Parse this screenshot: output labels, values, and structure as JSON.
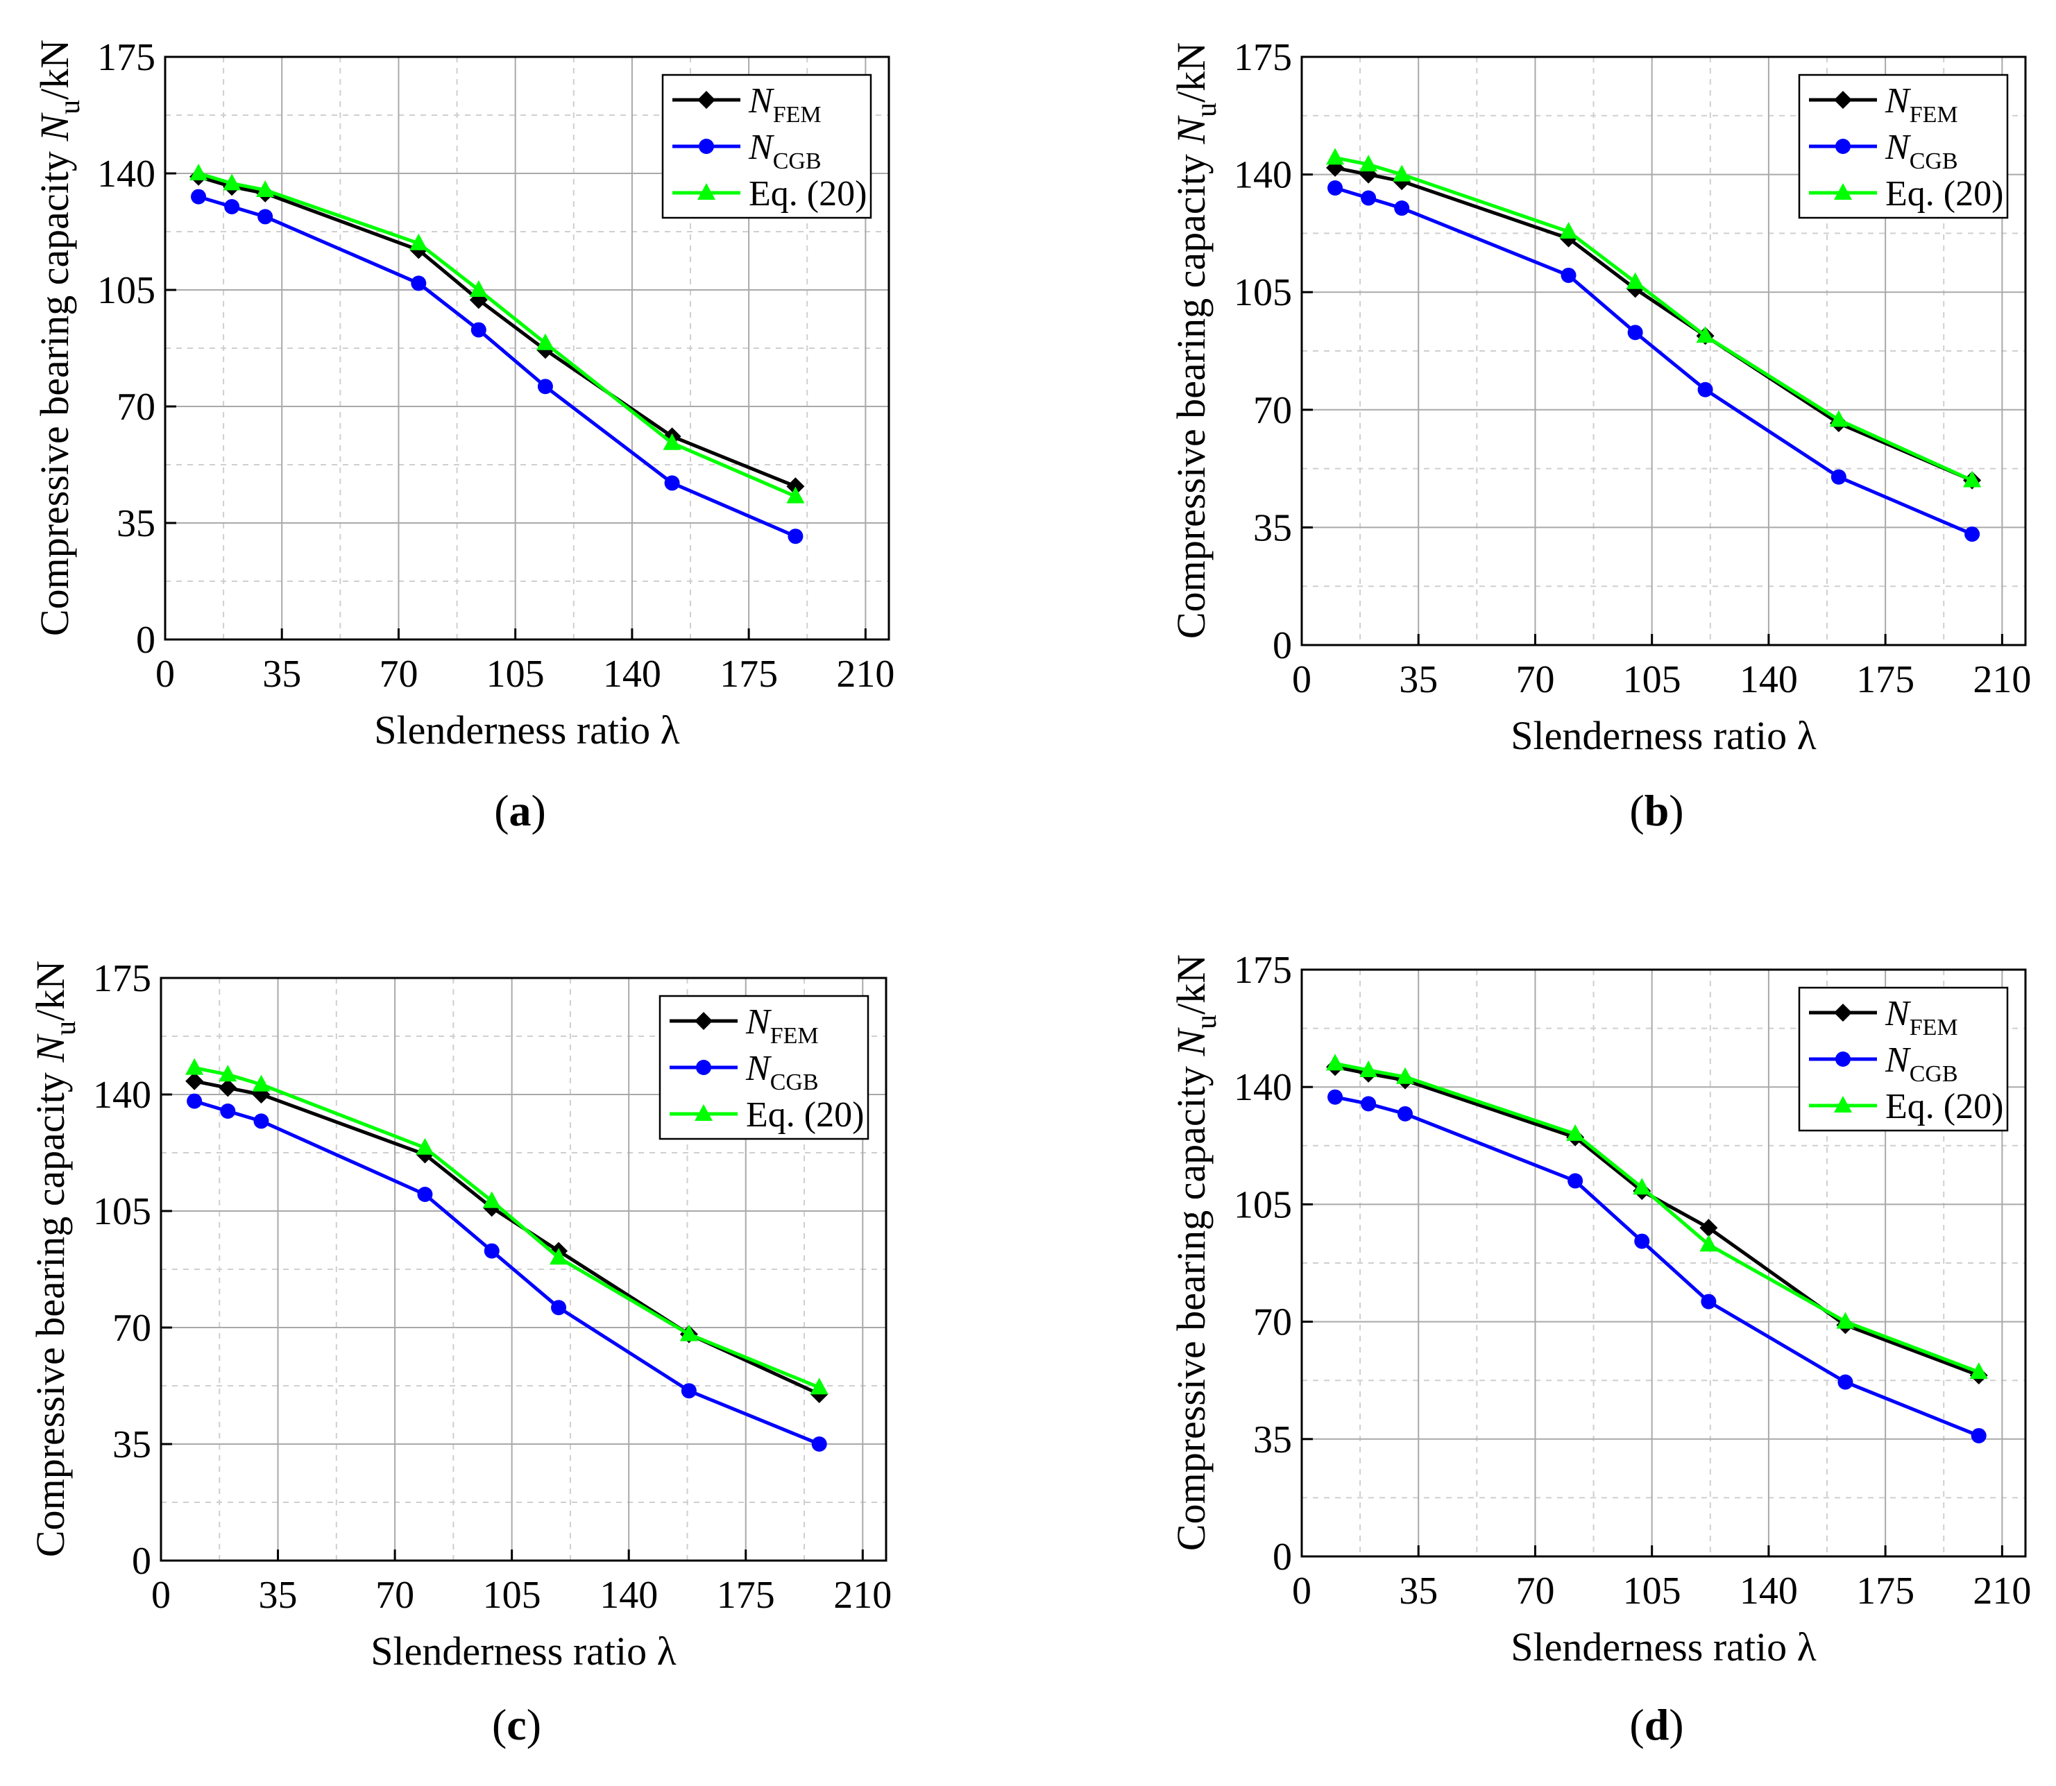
{
  "figure": {
    "panel_labels": [
      "a",
      "b",
      "c",
      "d"
    ],
    "legend": {
      "fem_main": "N",
      "fem_sub": "FEM",
      "cgb_main": "N",
      "cgb_sub": "CGB",
      "eq": "Eq. (20)"
    },
    "colors": {
      "fem": "#000000",
      "cgb": "#0000ff",
      "eq": "#00ff00"
    }
  },
  "chart_data": [
    {
      "type": "line",
      "panel": "a",
      "xlabel": "Slenderness ratio λ",
      "ylabel": "Compressive bearing capacity Nu/kN",
      "ylabel_main": "Compressive bearing capacity ",
      "ylabel_n": "N",
      "ylabel_sub": "u",
      "ylabel_unit": "/kN",
      "xlim": [
        0,
        217
      ],
      "ylim": [
        0,
        175
      ],
      "xticks": [
        "0",
        "35",
        "70",
        "105",
        "140",
        "175",
        "210"
      ],
      "yticks": [
        "0",
        "35",
        "70",
        "105",
        "140",
        "175"
      ],
      "legend_position": "top-right",
      "series": [
        {
          "name": "N_FEM",
          "marker": "diamond",
          "x": [
            10,
            20,
            30,
            76,
            94,
            114,
            152,
            189
          ],
          "y": [
            139,
            136,
            134,
            117,
            102,
            87,
            61,
            46
          ]
        },
        {
          "name": "N_CGB",
          "marker": "circle",
          "x": [
            10,
            20,
            30,
            76,
            94,
            114,
            152,
            189
          ],
          "y": [
            133,
            130,
            127,
            107,
            93,
            76,
            47,
            31
          ]
        },
        {
          "name": "Eq. (20)",
          "marker": "triangle",
          "x": [
            10,
            20,
            30,
            76,
            94,
            114,
            152,
            189
          ],
          "y": [
            140,
            137,
            135,
            119,
            105,
            89,
            59,
            43
          ]
        }
      ]
    },
    {
      "type": "line",
      "panel": "b",
      "xlabel": "Slenderness ratio λ",
      "ylabel": "Compressive bearing capacity Nu/kN",
      "ylabel_main": "Compressive bearing capacity ",
      "ylabel_n": "N",
      "ylabel_sub": "u",
      "ylabel_unit": "/kN",
      "xlim": [
        0,
        217
      ],
      "ylim": [
        0,
        175
      ],
      "xticks": [
        "0",
        "35",
        "70",
        "105",
        "140",
        "175",
        "210"
      ],
      "yticks": [
        "0",
        "35",
        "70",
        "105",
        "140",
        "175"
      ],
      "legend_position": "top-right",
      "series": [
        {
          "name": "N_FEM",
          "marker": "diamond",
          "x": [
            10,
            20,
            30,
            80,
            100,
            121,
            161,
            201
          ],
          "y": [
            142,
            140,
            138,
            121,
            106,
            92,
            66,
            49
          ]
        },
        {
          "name": "N_CGB",
          "marker": "circle",
          "x": [
            10,
            20,
            30,
            80,
            100,
            121,
            161,
            201
          ],
          "y": [
            136,
            133,
            130,
            110,
            93,
            76,
            50,
            33
          ]
        },
        {
          "name": "Eq. (20)",
          "marker": "triangle",
          "x": [
            10,
            20,
            30,
            80,
            100,
            121,
            161,
            201
          ],
          "y": [
            145,
            143,
            140,
            123,
            108,
            92,
            67,
            49
          ]
        }
      ]
    },
    {
      "type": "line",
      "panel": "c",
      "xlabel": "Slenderness ratio λ",
      "ylabel": "Compressive bearing capacity Nu/kN",
      "ylabel_main": "Compressive bearing capacity ",
      "ylabel_n": "N",
      "ylabel_sub": "u",
      "ylabel_unit": "/kN",
      "xlim": [
        0,
        217
      ],
      "ylim": [
        0,
        175
      ],
      "xticks": [
        "0",
        "35",
        "70",
        "105",
        "140",
        "175",
        "210"
      ],
      "yticks": [
        "0",
        "35",
        "70",
        "105",
        "140",
        "175"
      ],
      "legend_position": "top-right",
      "series": [
        {
          "name": "N_FEM",
          "marker": "diamond",
          "x": [
            10,
            20,
            30,
            79,
            99,
            119,
            158,
            197
          ],
          "y": [
            144,
            142,
            140,
            122,
            106,
            93,
            68,
            50
          ]
        },
        {
          "name": "N_CGB",
          "marker": "circle",
          "x": [
            10,
            20,
            30,
            79,
            99,
            119,
            158,
            197
          ],
          "y": [
            138,
            135,
            132,
            110,
            93,
            76,
            51,
            35
          ]
        },
        {
          "name": "Eq. (20)",
          "marker": "triangle",
          "x": [
            10,
            20,
            30,
            79,
            99,
            119,
            158,
            197
          ],
          "y": [
            148,
            146,
            143,
            124,
            108,
            91,
            68,
            52
          ]
        }
      ]
    },
    {
      "type": "line",
      "panel": "d",
      "xlabel": "Slenderness ratio λ",
      "ylabel": "Compressive bearing capacity Nu/kN",
      "ylabel_main": "Compressive bearing capacity ",
      "ylabel_n": "N",
      "ylabel_sub": "u",
      "ylabel_unit": "/kN",
      "xlim": [
        0,
        217
      ],
      "ylim": [
        0,
        175
      ],
      "xticks": [
        "0",
        "35",
        "70",
        "105",
        "140",
        "175",
        "210"
      ],
      "yticks": [
        "0",
        "35",
        "70",
        "105",
        "140",
        "175"
      ],
      "legend_position": "top-right",
      "series": [
        {
          "name": "N_FEM",
          "marker": "diamond",
          "x": [
            10,
            20,
            31,
            82,
            102,
            122,
            163,
            203
          ],
          "y": [
            146,
            144,
            142,
            125,
            109,
            98,
            69,
            54
          ]
        },
        {
          "name": "N_CGB",
          "marker": "circle",
          "x": [
            10,
            20,
            31,
            82,
            102,
            122,
            163,
            203
          ],
          "y": [
            137,
            135,
            132,
            112,
            94,
            76,
            52,
            36
          ]
        },
        {
          "name": "Eq. (20)",
          "marker": "triangle",
          "x": [
            10,
            20,
            31,
            82,
            102,
            122,
            163,
            203
          ],
          "y": [
            147,
            145,
            143,
            126,
            110,
            93,
            70,
            55
          ]
        }
      ]
    }
  ]
}
